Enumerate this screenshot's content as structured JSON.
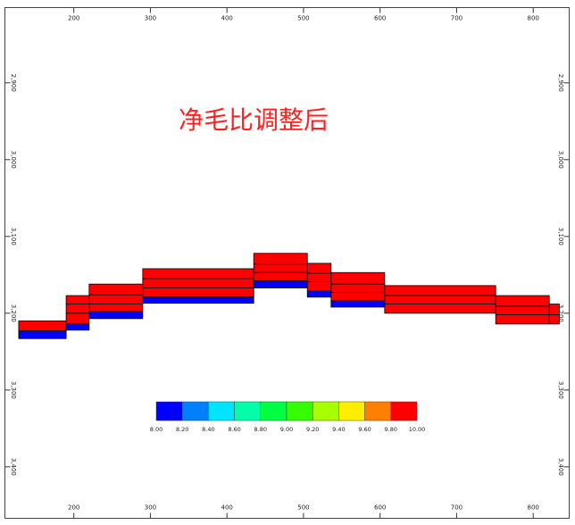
{
  "chart_data": {
    "type": "cross-section",
    "title": "净毛比调整后",
    "xlim": [
      110,
      847
    ],
    "ylim": [
      2802,
      3467
    ],
    "xticks": [
      200,
      300,
      400,
      500,
      600,
      700,
      800
    ],
    "yticks": [
      {
        "value": 2900,
        "label": "2,900"
      },
      {
        "value": 3000,
        "label": "3,000"
      },
      {
        "value": 3100,
        "label": "3,100"
      },
      {
        "value": 3200,
        "label": "3,200"
      },
      {
        "value": 3300,
        "label": "3,300"
      },
      {
        "value": 3400,
        "label": "3,400"
      }
    ],
    "columns": [
      {
        "x": [
          128,
          190
        ],
        "layers": [
          {
            "depth": [
              3210,
              3223
            ],
            "value": 10
          },
          {
            "depth": [
              3223,
              3233
            ],
            "value": 8
          }
        ]
      },
      {
        "x": [
          190,
          220
        ],
        "layers": [
          {
            "depth": [
              3177,
              3188
            ],
            "value": 10
          },
          {
            "depth": [
              3188,
              3200
            ],
            "value": 10
          },
          {
            "depth": [
              3200,
              3214
            ],
            "value": 10
          },
          {
            "depth": [
              3214,
              3222
            ],
            "value": 8
          }
        ]
      },
      {
        "x": [
          220,
          290
        ],
        "layers": [
          {
            "depth": [
              3162,
              3176
            ],
            "value": 10
          },
          {
            "depth": [
              3176,
              3188
            ],
            "value": 10
          },
          {
            "depth": [
              3188,
              3198
            ],
            "value": 10
          },
          {
            "depth": [
              3198,
              3207
            ],
            "value": 8
          }
        ]
      },
      {
        "x": [
          290,
          435
        ],
        "layers": [
          {
            "depth": [
              3142,
              3155
            ],
            "value": 10
          },
          {
            "depth": [
              3155,
              3167
            ],
            "value": 10
          },
          {
            "depth": [
              3167,
              3179
            ],
            "value": 10
          },
          {
            "depth": [
              3179,
              3187
            ],
            "value": 8
          }
        ]
      },
      {
        "x": [
          435,
          505
        ],
        "layers": [
          {
            "depth": [
              3122,
              3136
            ],
            "value": 10
          },
          {
            "depth": [
              3136,
              3147
            ],
            "value": 10
          },
          {
            "depth": [
              3147,
              3158
            ],
            "value": 10
          },
          {
            "depth": [
              3158,
              3167
            ],
            "value": 8
          }
        ]
      },
      {
        "x": [
          505,
          536
        ],
        "layers": [
          {
            "depth": [
              3135,
              3148
            ],
            "value": 10
          },
          {
            "depth": [
              3148,
              3159
            ],
            "value": 10
          },
          {
            "depth": [
              3159,
              3171
            ],
            "value": 10
          },
          {
            "depth": [
              3171,
              3179
            ],
            "value": 8
          }
        ]
      },
      {
        "x": [
          536,
          606
        ],
        "layers": [
          {
            "depth": [
              3147,
              3162
            ],
            "value": 10
          },
          {
            "depth": [
              3162,
              3173
            ],
            "value": 10
          },
          {
            "depth": [
              3173,
              3184
            ],
            "value": 10
          },
          {
            "depth": [
              3184,
              3192
            ],
            "value": 8
          }
        ]
      },
      {
        "x": [
          606,
          751
        ],
        "layers": [
          {
            "depth": [
              3164,
              3177
            ],
            "value": 10
          },
          {
            "depth": [
              3177,
              3188
            ],
            "value": 10
          },
          {
            "depth": [
              3188,
              3200
            ],
            "value": 10
          }
        ]
      },
      {
        "x": [
          751,
          821
        ],
        "layers": [
          {
            "depth": [
              3177,
              3191
            ],
            "value": 10
          },
          {
            "depth": [
              3191,
              3202
            ],
            "value": 10
          },
          {
            "depth": [
              3202,
              3214
            ],
            "value": 10
          }
        ]
      },
      {
        "x": [
          821,
          834
        ],
        "layers": [
          {
            "depth": [
              3188,
              3202
            ],
            "value": 10
          },
          {
            "depth": [
              3202,
              3214
            ],
            "value": 10
          }
        ]
      }
    ],
    "colorbar": {
      "range": [
        8,
        10
      ],
      "colors": [
        "#0000ff",
        "#0080ff",
        "#00e5ff",
        "#00ffa8",
        "#00ff40",
        "#33ff00",
        "#a8ff00",
        "#ffee00",
        "#ff7f00",
        "#ff0000"
      ],
      "ticks": [
        {
          "value": 8,
          "label": "8.00"
        },
        {
          "value": 8.2,
          "label": "8.20"
        },
        {
          "value": 8.4,
          "label": "8.40"
        },
        {
          "value": 8.6,
          "label": "8.60"
        },
        {
          "value": 8.8,
          "label": "8.80"
        },
        {
          "value": 9,
          "label": "9.00"
        },
        {
          "value": 9.2,
          "label": "9.20"
        },
        {
          "value": 9.4,
          "label": "9.40"
        },
        {
          "value": 9.6,
          "label": "9.60"
        },
        {
          "value": 9.8,
          "label": "9.80"
        },
        {
          "value": 10,
          "label": "10.00"
        }
      ]
    }
  }
}
